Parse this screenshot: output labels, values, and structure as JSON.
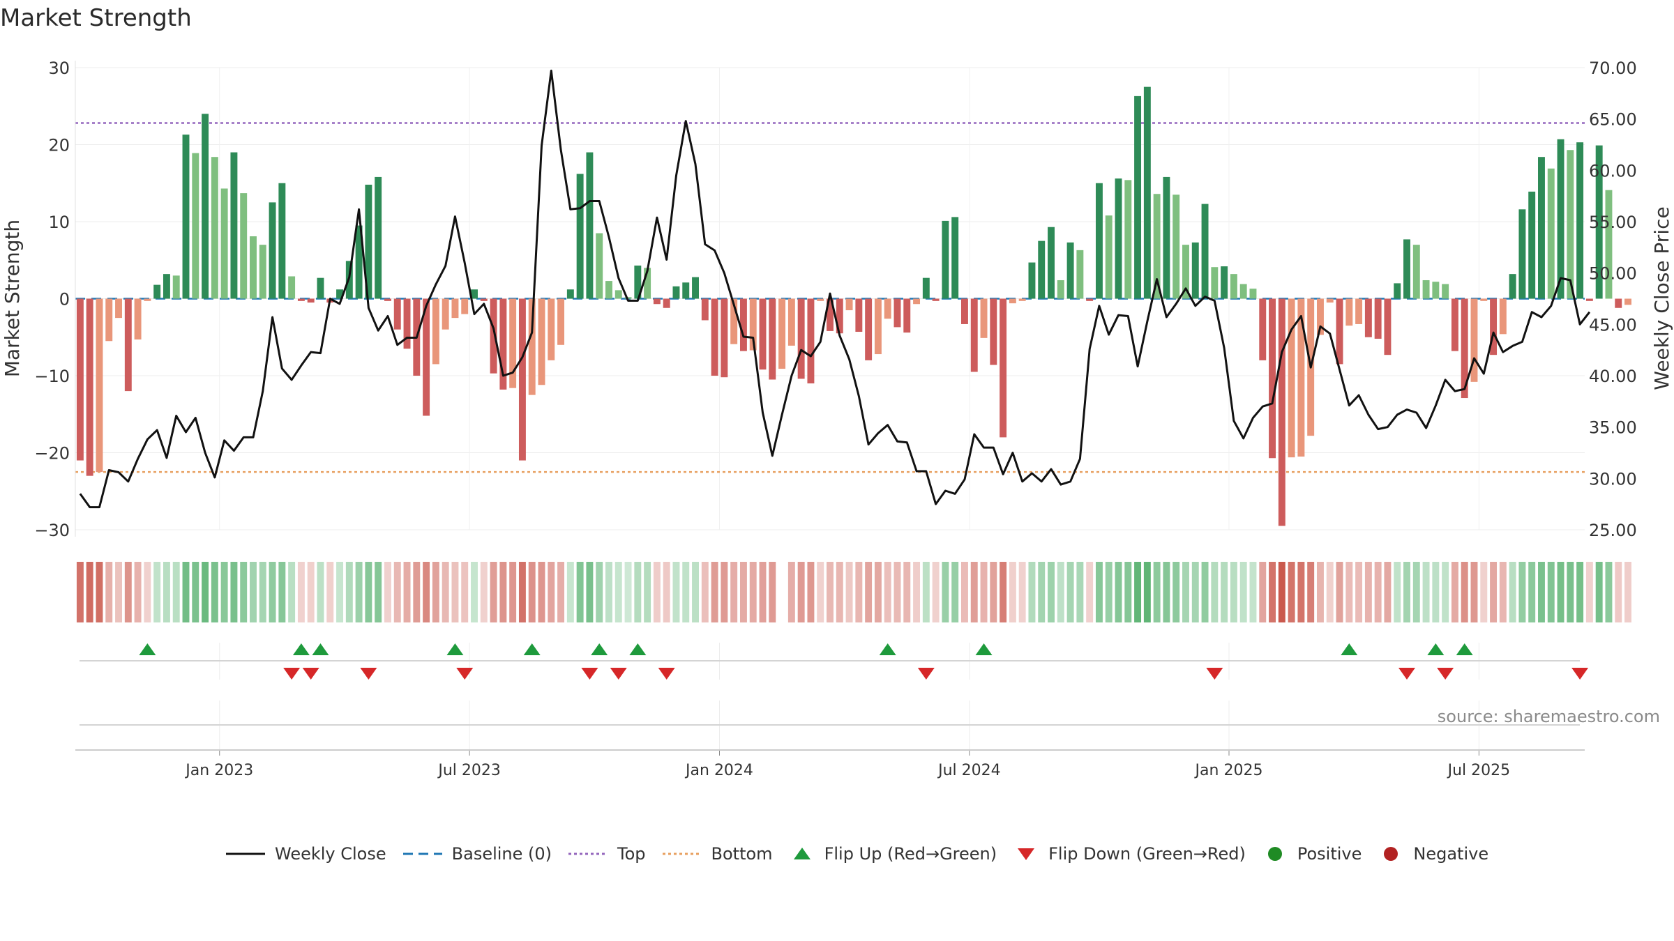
{
  "chart_data": {
    "type": "bar",
    "title": "Market Strength",
    "source": "source: sharemaestro.com",
    "ylabel": "Market Strength",
    "ylabel_right": "Weekly Close Price",
    "ylim": [
      -30,
      30
    ],
    "ylim_right": [
      25,
      70
    ],
    "yticks": [
      -30,
      -20,
      -10,
      0,
      10,
      20,
      30
    ],
    "yticks_labels": [
      "−30",
      "−20",
      "−10",
      "0",
      "10",
      "20",
      "30"
    ],
    "yticks_right": [
      25,
      30,
      35,
      40,
      45,
      50,
      55,
      60,
      65,
      70
    ],
    "yticks_right_labels": [
      "25.00",
      "30.00",
      "35.00",
      "40.00",
      "45.00",
      "50.00",
      "55.00",
      "60.00",
      "65.00",
      "70.00"
    ],
    "x_range_weeks": [
      0,
      157
    ],
    "xtick_weeks": [
      15,
      41,
      67,
      93,
      120,
      146
    ],
    "xtick_labels": [
      "Jan 2023",
      "Jul 2023",
      "Jan 2024",
      "Jul 2024",
      "Jan 2025",
      "Jul 2025"
    ],
    "top_level": 22.8,
    "bottom_level": -22.5,
    "strength": [
      -21,
      -23,
      -22.5,
      -5.5,
      -2.5,
      -12,
      -5.3,
      -0.3,
      1.8,
      3.2,
      3,
      21.3,
      18.9,
      24,
      18.4,
      14.3,
      19,
      13.7,
      8.1,
      7,
      12.5,
      15,
      2.9,
      -0.3,
      -0.5,
      2.7,
      -0.5,
      1.2,
      4.9,
      9.5,
      14.8,
      15.8,
      -0.3,
      -4,
      -6.5,
      -10,
      -15.2,
      -8.5,
      -4,
      -2.5,
      -2,
      1.2,
      -0.3,
      -9.7,
      -11.8,
      -11.6,
      -21,
      -12.5,
      -11.2,
      -8,
      -6,
      1.2,
      16.2,
      19,
      8.5,
      2.3,
      1.1,
      0.2,
      4.3,
      4,
      -0.7,
      -1.2,
      1.6,
      2.1,
      2.8,
      -2.8,
      -10,
      -10.2,
      -5.9,
      -6.8,
      -6.7,
      -9.2,
      -10.5,
      -9.1,
      -6.1,
      -10.4,
      -11,
      -0.3,
      -4.2,
      -4.5,
      -1.5,
      -4.3,
      -8,
      -7.2,
      -2.6,
      -3.7,
      -4.4,
      -0.7,
      2.7,
      -0.3,
      10.1,
      10.6,
      -3.3,
      -9.5,
      -5.1,
      -8.6,
      -18,
      -0.6,
      -0.3,
      4.7,
      7.5,
      9.3,
      2.4,
      7.3,
      6.3,
      -0.3,
      15,
      10.8,
      15.6,
      15.4,
      26.3,
      27.5,
      13.6,
      15.8,
      13.5,
      7,
      7.3,
      12.3,
      4.1,
      4.2,
      3.2,
      1.9,
      1.3,
      -8,
      -20.7,
      -29.5,
      -20.6,
      -20.5,
      -17.8,
      -4.7,
      -0.5,
      -8.5,
      -3.5,
      -3.3,
      -5,
      -5.2,
      -7.3,
      2,
      7.7,
      7,
      2.4,
      2.2,
      1.9,
      -6.8,
      -12.9,
      -10.8,
      -0.3,
      -7.3,
      -4.6,
      3.2,
      11.6,
      13.9,
      18.4,
      16.9,
      20.7,
      19.3,
      20.3,
      -0.3,
      19.9,
      14.1,
      -1.2,
      -0.8
    ],
    "weekly_close": [
      28.5,
      27.2,
      27.2,
      30.8,
      30.6,
      29.7,
      31.9,
      33.8,
      34.7,
      32,
      36.1,
      34.5,
      35.9,
      32.5,
      30.1,
      33.7,
      32.7,
      34,
      34,
      38.5,
      45.7,
      40.7,
      39.6,
      41,
      42.3,
      42.2,
      47.5,
      47,
      49.6,
      56.2,
      46.6,
      44.4,
      45.8,
      43,
      43.7,
      43.7,
      46.8,
      48.9,
      50.7,
      55.5,
      51,
      46,
      47,
      44.6,
      40,
      40.3,
      41.8,
      44.2,
      62.4,
      69.7,
      62,
      56.2,
      56.3,
      57,
      57,
      53.5,
      49.5,
      47.3,
      47.3,
      50.2,
      55.4,
      51.3,
      59.5,
      64.8,
      60.6,
      52.8,
      52.2,
      50,
      46.9,
      43.8,
      43.7,
      36.4,
      32.2,
      36.2,
      40,
      42.5,
      41.9,
      43.3,
      48,
      43.9,
      41.6,
      38,
      33.3,
      34.4,
      35.2,
      33.6,
      33.5,
      30.7,
      30.7,
      27.5,
      28.8,
      28.5,
      29.9,
      34.3,
      33,
      33,
      30.4,
      32.5,
      29.7,
      30.5,
      29.7,
      30.9,
      29.4,
      29.7,
      31.9,
      42.6,
      46.8,
      44,
      45.9,
      45.8,
      40.9,
      45.3,
      49.4,
      45.7,
      47,
      48.5,
      46.8,
      47.7,
      47.3,
      42.7,
      35.6,
      33.9,
      35.9,
      37,
      37.3,
      42.3,
      44.5,
      45.8,
      40.8,
      44.8,
      44.1,
      40.6,
      37.1,
      38.1,
      36.2,
      34.8,
      35,
      36.2,
      36.7,
      36.4,
      34.9,
      37.1,
      39.6,
      38.5,
      38.7,
      41.7,
      40.2,
      44.2,
      42.3,
      42.9,
      43.3,
      46.2,
      45.7,
      46.8,
      49.5,
      49.3,
      45,
      46.2
    ],
    "regime_strip": {
      "row_label": "",
      "encoding": "green = positive strength, red = negative strength; shade intensity follows magnitude",
      "empty_weeks": [
        73
      ]
    },
    "flip_up_weeks": [
      7,
      23,
      25,
      39,
      47,
      54,
      58,
      84,
      94,
      132,
      141,
      144
    ],
    "flip_down_weeks": [
      22,
      24,
      30,
      40,
      53,
      56,
      61,
      88,
      118,
      138,
      142,
      156
    ],
    "legend": [
      "Weekly Close",
      "Baseline (0)",
      "Top",
      "Bottom",
      "Flip Up (Red→Green)",
      "Flip Down (Green→Red)",
      "Positive",
      "Negative"
    ],
    "colors": {
      "strong_positive": "#2e8b57",
      "weak_positive": "#7fbf7f",
      "strong_negative": "#cd5c5c",
      "weak_negative": "#e9967a",
      "line": "#111111",
      "baseline": "#1f77b4",
      "top": "#9467bd",
      "bottom": "#e8a060",
      "flip_up": "#1e9a3c",
      "flip_down": "#d62728",
      "positive_dot": "#1f8b24",
      "negative_dot": "#b22222"
    }
  }
}
